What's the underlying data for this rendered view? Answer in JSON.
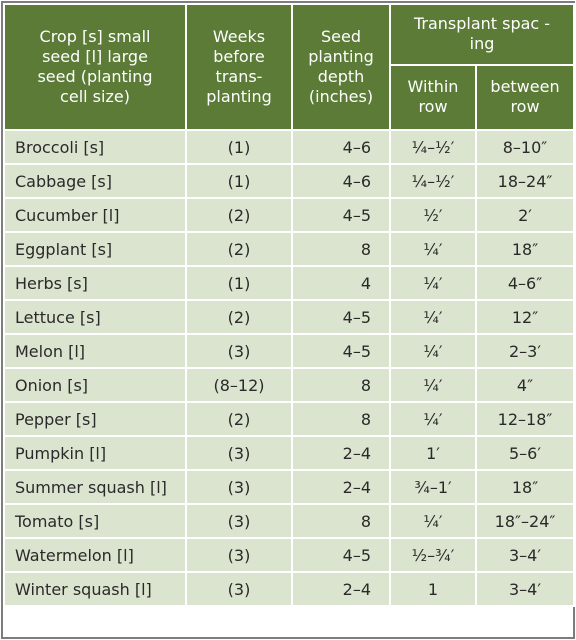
{
  "table": {
    "header": {
      "crop": [
        "Crop  [s] small",
        "seed [l] large",
        "seed (planting",
        "cell size)"
      ],
      "weeks": [
        "Weeks",
        "before",
        "trans-",
        "planting"
      ],
      "depth": [
        "Seed",
        "planting",
        "depth",
        "(inches)"
      ],
      "spacing": [
        "Transplant spac -",
        "ing"
      ],
      "within": [
        "Within",
        "row"
      ],
      "between": [
        "between",
        "row"
      ]
    },
    "rows": [
      [
        "Broccoli [s]",
        "(1)",
        "4–6",
        "¼–½′",
        "8–10″"
      ],
      [
        "Cabbage [s]",
        "(1)",
        "4–6",
        "¼–½′",
        "18–24″"
      ],
      [
        "Cucumber [l]",
        "(2)",
        "4–5",
        "½′",
        "2′"
      ],
      [
        "Eggplant [s]",
        "(2)",
        "8",
        "¼′",
        "18″"
      ],
      [
        "Herbs [s]",
        "(1)",
        "4",
        "¼′",
        "4–6″"
      ],
      [
        "Lettuce [s]",
        "(2)",
        "4–5",
        "¼′",
        "12″"
      ],
      [
        "Melon [l]",
        "(3)",
        "4–5",
        "¼′",
        "2–3′"
      ],
      [
        "Onion [s]",
        "(8–12)",
        "8",
        "¼′",
        "4″"
      ],
      [
        "Pepper [s]",
        "(2)",
        "8",
        "¼′",
        "12–18″"
      ],
      [
        "Pumpkin [l]",
        "(3)",
        "2–4",
        "1′",
        "5–6′"
      ],
      [
        "Summer squash [l]",
        "(3)",
        "2–4",
        "¾–1′",
        "18″"
      ],
      [
        "Tomato [s]",
        "(3)",
        "8",
        "¼′",
        "18″–24″"
      ],
      [
        "Watermelon [l]",
        "(3)",
        "4–5",
        "½–¾′",
        "3–4′"
      ],
      [
        "Winter squash [l]",
        "(3)",
        "2–4",
        "1",
        "3–4′"
      ]
    ]
  }
}
